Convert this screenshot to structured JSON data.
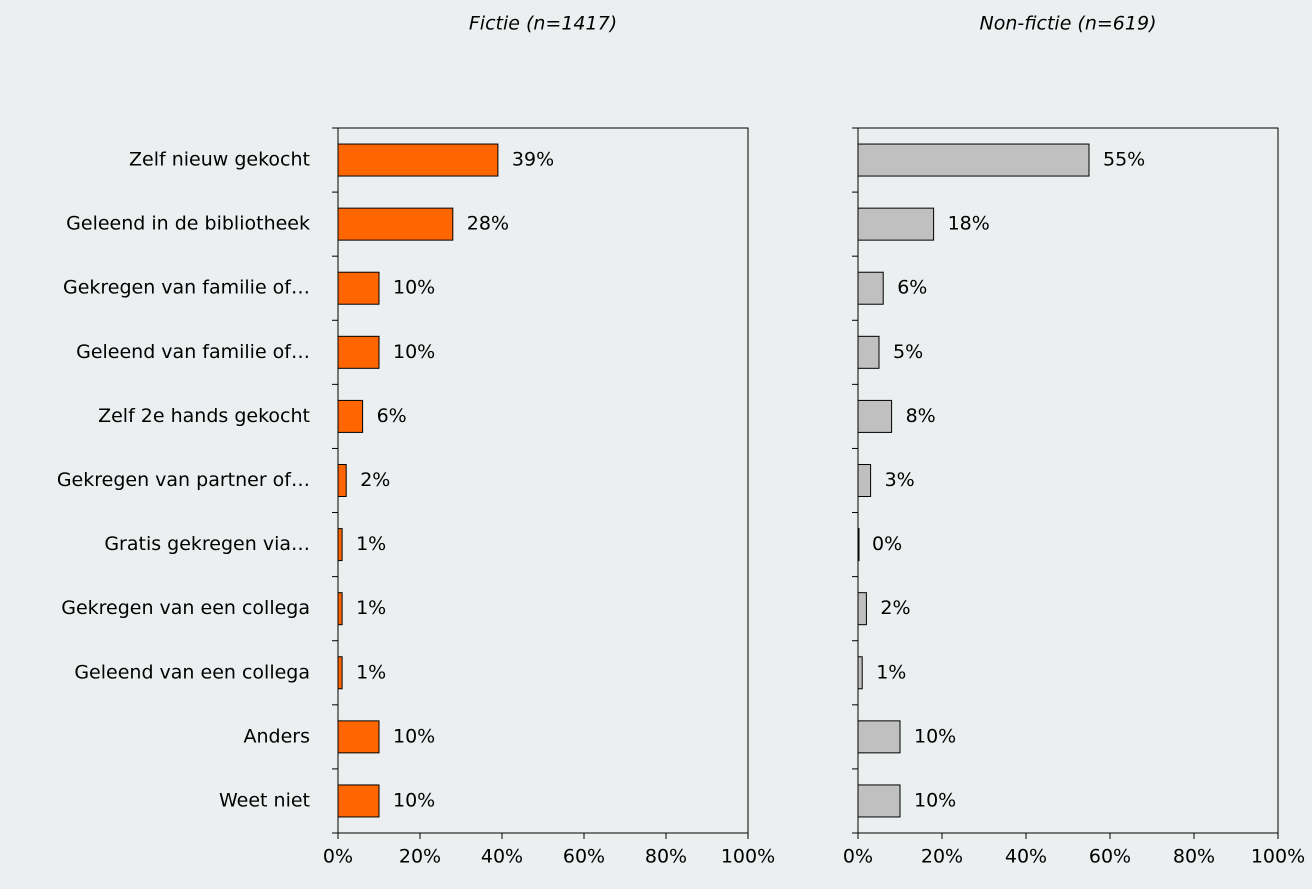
{
  "chart_data": [
    {
      "type": "bar",
      "orientation": "horizontal",
      "title": "Fictie (n=1417)",
      "categories": [
        "Zelf nieuw gekocht",
        "Geleend in de bibliotheek",
        "Gekregen van familie of…",
        "Geleend van familie of…",
        "Zelf 2e hands gekocht",
        "Gekregen van partner of…",
        "Gratis gekregen via…",
        "Gekregen van een collega",
        "Geleend van een collega",
        "Anders",
        "Weet niet"
      ],
      "values": [
        39,
        28,
        10,
        10,
        6,
        2,
        1,
        1,
        1,
        10,
        10
      ],
      "value_labels": [
        "39%",
        "28%",
        "10%",
        "10%",
        "6%",
        "2%",
        "1%",
        "1%",
        "1%",
        "10%",
        "10%"
      ],
      "color": "#ff6600",
      "xlim": [
        0,
        100
      ],
      "xticks": [
        {
          "value": 0,
          "label": "0%"
        },
        {
          "value": 20,
          "label": "20%"
        },
        {
          "value": 40,
          "label": "40%"
        },
        {
          "value": 60,
          "label": "60%"
        },
        {
          "value": 80,
          "label": "80%"
        },
        {
          "value": 100,
          "label": "100%"
        }
      ]
    },
    {
      "type": "bar",
      "orientation": "horizontal",
      "title": "Non-fictie (n=619)",
      "values": [
        55,
        18,
        6,
        5,
        8,
        3,
        0,
        2,
        1,
        10,
        10
      ],
      "value_labels": [
        "55%",
        "18%",
        "6%",
        "5%",
        "8%",
        "3%",
        "0%",
        "2%",
        "1%",
        "10%",
        "10%"
      ],
      "color": "#c0c0c0",
      "xlim": [
        0,
        100
      ],
      "xticks": [
        {
          "value": 0,
          "label": "0%"
        },
        {
          "value": 20,
          "label": "20%"
        },
        {
          "value": 40,
          "label": "40%"
        },
        {
          "value": 60,
          "label": "60%"
        },
        {
          "value": 80,
          "label": "80%"
        },
        {
          "value": 100,
          "label": "100%"
        }
      ]
    }
  ]
}
